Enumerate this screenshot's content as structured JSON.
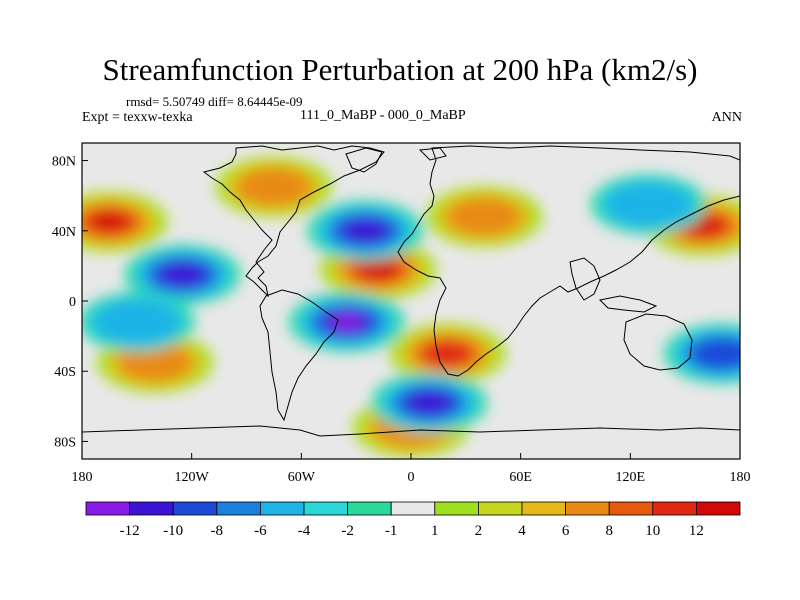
{
  "header": {
    "title": "Streamfunction Perturbation at 200 hPa (km2/s)",
    "stats": "rmsd= 5.50749 diff= 8.64445e-09",
    "expt": "Expt = texxw-texka",
    "experiment_label": "111_0_MaBP - 000_0_MaBP",
    "season": "ANN"
  },
  "chart_data": {
    "type": "heatmap",
    "title": "Streamfunction Perturbation at 200 hPa (km2/s)",
    "xlabel": "",
    "ylabel": "",
    "xlim": [
      -180,
      180
    ],
    "ylim": [
      -90,
      90
    ],
    "x_ticks": [
      {
        "value": -180,
        "label": "180"
      },
      {
        "value": -120,
        "label": "120W"
      },
      {
        "value": -60,
        "label": "60W"
      },
      {
        "value": 0,
        "label": "0"
      },
      {
        "value": 60,
        "label": "60E"
      },
      {
        "value": 120,
        "label": "120E"
      },
      {
        "value": 180,
        "label": "180"
      }
    ],
    "y_ticks": [
      {
        "value": 80,
        "label": "80N"
      },
      {
        "value": 40,
        "label": "40N"
      },
      {
        "value": 0,
        "label": "0"
      },
      {
        "value": -40,
        "label": "40S"
      },
      {
        "value": -80,
        "label": "80S"
      }
    ],
    "colorbar": {
      "levels": [
        -12,
        -10,
        -8,
        -6,
        -4,
        -2,
        -1,
        1,
        2,
        4,
        6,
        8,
        10,
        12
      ],
      "labels": [
        "-12",
        "-10",
        "-8",
        "-6",
        "-4",
        "-2",
        "-1",
        "1",
        "2",
        "4",
        "6",
        "8",
        "10",
        "12"
      ],
      "colors": [
        "#8a1ae6",
        "#3b14d6",
        "#1e48d8",
        "#1a80e0",
        "#1eb4e6",
        "#2dd6d6",
        "#2bd89a",
        "#e8e8e8",
        "#9ee01e",
        "#c6d61e",
        "#e6b81a",
        "#e88a14",
        "#e65a0e",
        "#e02812",
        "#d2080a"
      ]
    },
    "features": [
      {
        "name": "max-pacific-north",
        "lon": -165,
        "lat": 45,
        "value": 12
      },
      {
        "name": "max-north-pacific-east",
        "lon": 160,
        "lat": 43,
        "value": 13
      },
      {
        "name": "max-atlantic-africa",
        "lon": -18,
        "lat": 18,
        "value": 12
      },
      {
        "name": "max-south-atlantic",
        "lon": 20,
        "lat": -30,
        "value": 11
      },
      {
        "name": "max-europe",
        "lon": 40,
        "lat": 48,
        "value": 6
      },
      {
        "name": "max-north-america",
        "lon": -75,
        "lat": 65,
        "value": 7
      },
      {
        "name": "max-southern-belt",
        "lon": 0,
        "lat": -72,
        "value": 6
      },
      {
        "name": "max-south-pacific",
        "lon": -140,
        "lat": -35,
        "value": 6
      },
      {
        "name": "min-east-pacific",
        "lon": -125,
        "lat": 15,
        "value": -10
      },
      {
        "name": "min-south-atlantic",
        "lon": -35,
        "lat": -12,
        "value": -13
      },
      {
        "name": "min-north-atlantic",
        "lon": -25,
        "lat": 40,
        "value": -10
      },
      {
        "name": "min-southern-ocean",
        "lon": 10,
        "lat": -58,
        "value": -11
      },
      {
        "name": "min-pacific-subtropics",
        "lon": -150,
        "lat": -12,
        "value": -5
      },
      {
        "name": "min-south-pacific-west",
        "lon": 170,
        "lat": -30,
        "value": -8
      },
      {
        "name": "min-asia",
        "lon": 130,
        "lat": 55,
        "value": -4
      }
    ]
  }
}
